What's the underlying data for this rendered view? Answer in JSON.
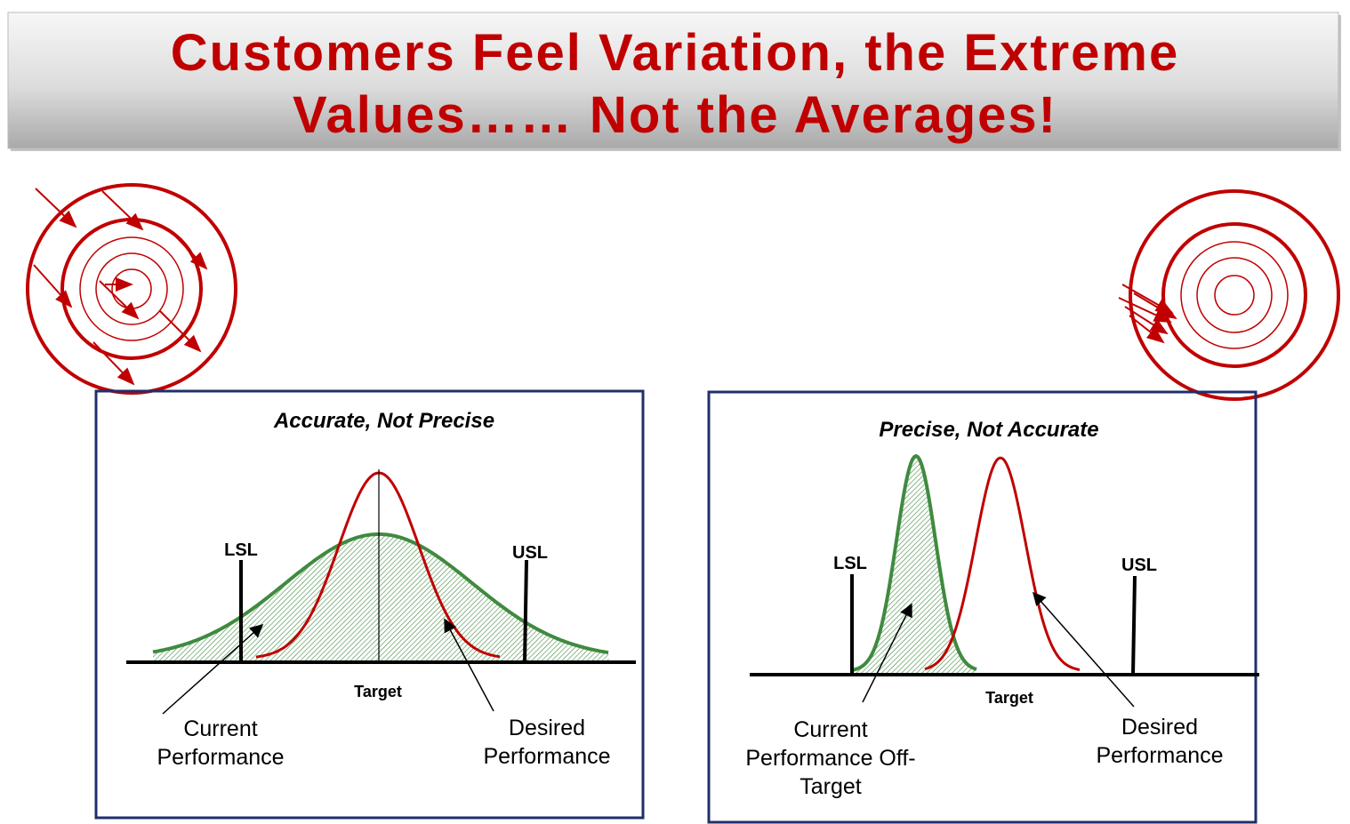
{
  "header": {
    "title_lines": [
      "Customers Feel Variation, the Extreme",
      "Values…… Not the Averages!"
    ]
  },
  "panels": [
    {
      "title": "Accurate, Not Precise",
      "lsl": "LSL",
      "usl": "USL",
      "target": "Target",
      "current_label": [
        "Current",
        "Performance"
      ],
      "desired_label": [
        "Desired",
        "Performance"
      ]
    },
    {
      "title": "Precise, Not Accurate",
      "lsl": "LSL",
      "usl": "USL",
      "target": "Target",
      "current_label": [
        "Current",
        "Performance Off-",
        "Target"
      ],
      "desired_label": [
        "Desired",
        "Performance"
      ]
    }
  ]
}
